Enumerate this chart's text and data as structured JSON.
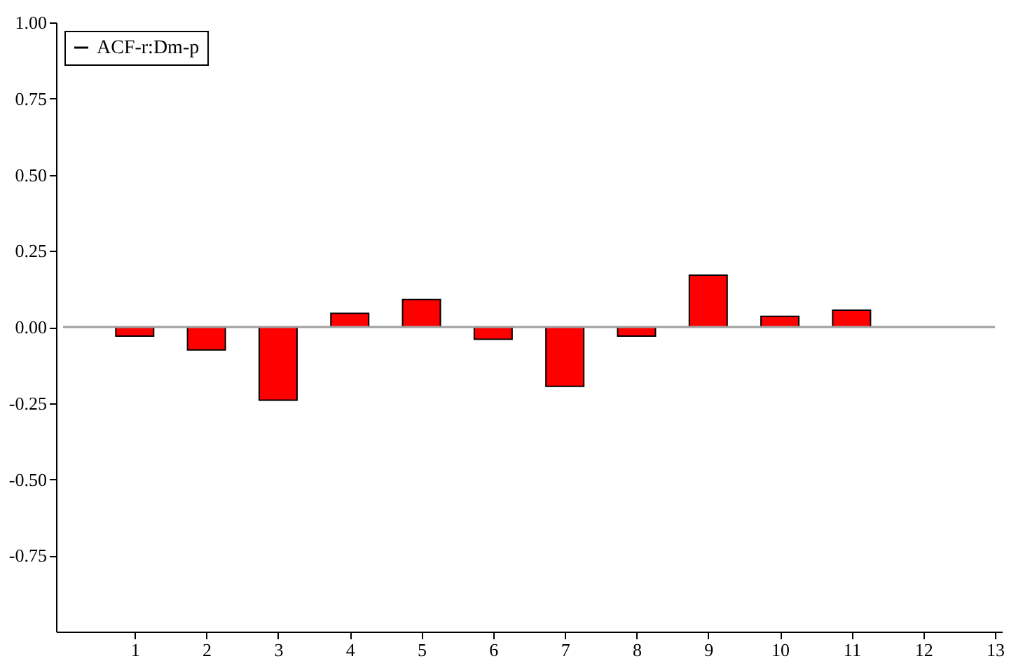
{
  "chart_data": {
    "type": "bar",
    "x": [
      1,
      2,
      3,
      4,
      5,
      6,
      7,
      8,
      9,
      10,
      11
    ],
    "series": [
      {
        "name": "ACF-r:Dm-p",
        "color": "#ff0000",
        "values": [
          -0.03,
          -0.075,
          -0.24,
          0.045,
          0.09,
          -0.04,
          -0.195,
          -0.03,
          0.17,
          0.035,
          0.055
        ]
      }
    ],
    "xlim": [
      0,
      13
    ],
    "xticks": [
      1,
      2,
      3,
      4,
      5,
      6,
      7,
      8,
      9,
      10,
      11,
      12,
      13
    ],
    "ylim": [
      -1,
      1
    ],
    "yticks": [
      {
        "value": 1,
        "label": "1.00"
      },
      {
        "value": 0.75,
        "label": "0.75"
      },
      {
        "value": 0.5,
        "label": "0.50"
      },
      {
        "value": 0.25,
        "label": "0.25"
      },
      {
        "value": 0,
        "label": "0.00"
      },
      {
        "value": -0.25,
        "label": "-0.25"
      },
      {
        "value": -0.5,
        "label": "-0.50"
      },
      {
        "value": -0.75,
        "label": "-0.75"
      }
    ],
    "ref_lines": [
      {
        "axis": "y",
        "value": 0,
        "color": "#a0a0a0"
      }
    ],
    "legend": "top left",
    "grid": false
  }
}
